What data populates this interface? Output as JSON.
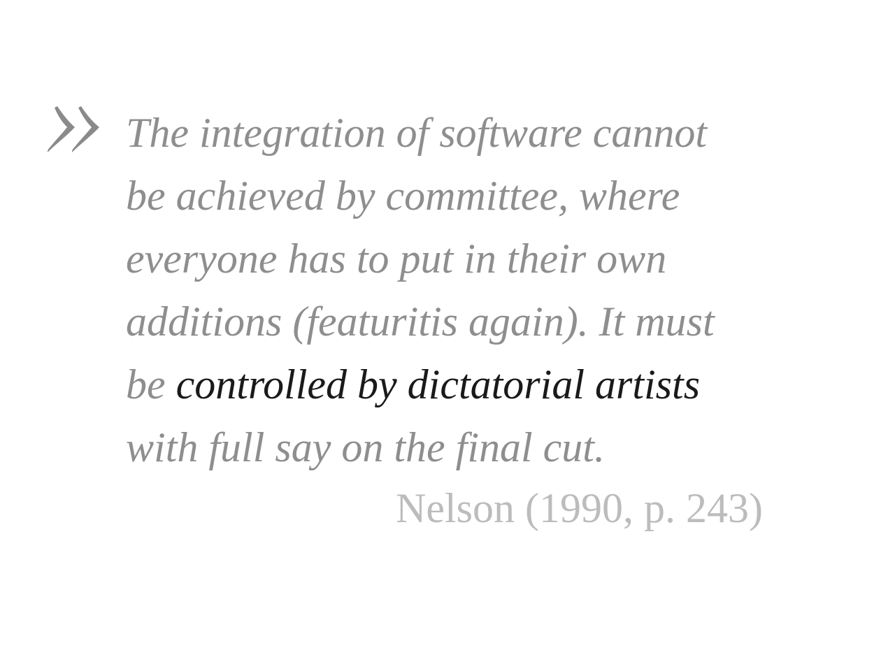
{
  "quote": {
    "icon": "double-chevron-right-icon",
    "lines": [
      "The integration of software cannot",
      "be achieved by committee, where",
      "everyone has to put in their own",
      "additions (featuritis again). It must"
    ],
    "line5_prefix": "be ",
    "line5_emphasis": "controlled by dictatorial artists",
    "line6": "with full say on the final cut."
  },
  "attribution": "Nelson (1990, p. 243)",
  "colors": {
    "quote_text": "#8e8e8e",
    "emphasis_text": "#1a1a1a",
    "attribution_text": "#bcbcbc",
    "quote_mark": "#8a8a8a"
  }
}
